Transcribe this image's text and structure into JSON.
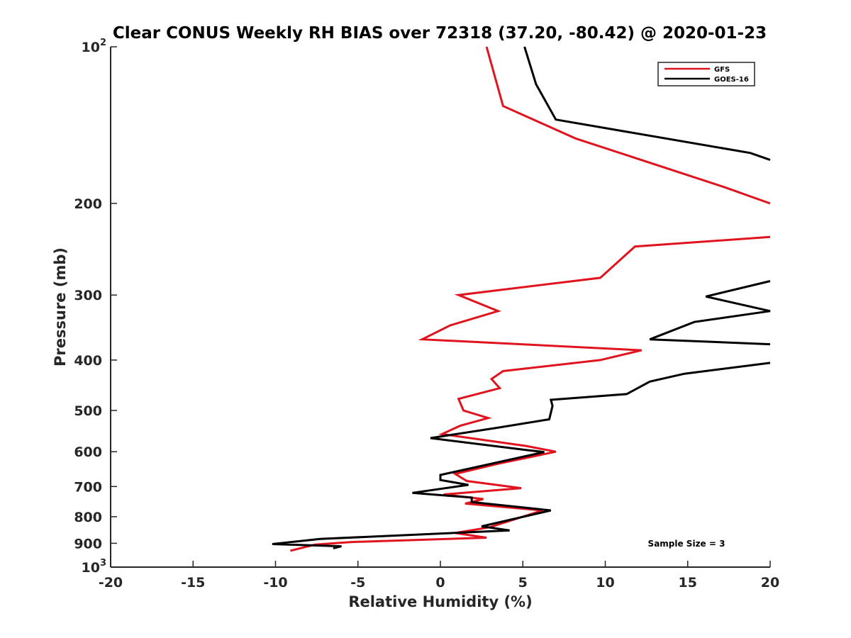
{
  "chart_data": {
    "type": "line",
    "title": "Clear CONUS Weekly RH BIAS over 72318 (37.20, -80.42) @ 2020-01-23",
    "xlabel": "Relative Humidity (%)",
    "ylabel": "Pressure (mb)",
    "xlim": [
      -20,
      20
    ],
    "ylim": [
      100,
      1000
    ],
    "y_scale": "log",
    "y_reversed": true,
    "grid": false,
    "legend_position": "top-right",
    "x_ticks": [
      "-20",
      "-15",
      "-10",
      "-5",
      "0",
      "5",
      "10",
      "15",
      "20"
    ],
    "y_ticks": [
      {
        "value": 100,
        "label": "10",
        "exp": "2"
      },
      {
        "value": 200,
        "label": "200",
        "exp": ""
      },
      {
        "value": 300,
        "label": "300",
        "exp": ""
      },
      {
        "value": 400,
        "label": "400",
        "exp": ""
      },
      {
        "value": 500,
        "label": "500",
        "exp": ""
      },
      {
        "value": 600,
        "label": "600",
        "exp": ""
      },
      {
        "value": 700,
        "label": "700",
        "exp": ""
      },
      {
        "value": 800,
        "label": "800",
        "exp": ""
      },
      {
        "value": 900,
        "label": "900",
        "exp": ""
      },
      {
        "value": 1000,
        "label": "10",
        "exp": "3"
      }
    ],
    "series": [
      {
        "name": "GFS",
        "color": "#e0141e",
        "segments": [
          [
            [
              2.8,
              100
            ],
            [
              3.8,
              130
            ],
            [
              8.2,
              150
            ],
            [
              17.2,
              186
            ],
            [
              20,
              200
            ]
          ],
          [
            [
              20,
              232
            ],
            [
              11.8,
              242
            ],
            [
              9.7,
              278
            ],
            [
              1.1,
              300
            ],
            [
              3.5,
              322
            ],
            [
              0.6,
              343
            ],
            [
              -1.1,
              365
            ],
            [
              12.2,
              383
            ],
            [
              9.7,
              400
            ],
            [
              3.8,
              420
            ],
            [
              3.1,
              435
            ],
            [
              3.6,
              453
            ],
            [
              1.1,
              475
            ],
            [
              1.4,
              500
            ],
            [
              2.9,
              517
            ],
            [
              1.2,
              535
            ],
            [
              0.1,
              555
            ],
            [
              5.2,
              585
            ],
            [
              7.0,
              600
            ],
            [
              3.5,
              633
            ],
            [
              0.9,
              662
            ],
            [
              1.6,
              683
            ],
            [
              4.9,
              705
            ],
            [
              0.2,
              725
            ],
            [
              2.6,
              740
            ],
            [
              1.5,
              755
            ],
            [
              6.2,
              778
            ],
            [
              3.0,
              838
            ],
            [
              0.9,
              860
            ],
            [
              2.8,
              878
            ],
            [
              -5.4,
              895
            ],
            [
              -7.6,
              905
            ],
            [
              -9.1,
              930
            ]
          ]
        ]
      },
      {
        "name": "GOES-16",
        "color": "#000000",
        "segments": [
          [
            [
              5.1,
              100
            ],
            [
              5.8,
              118
            ],
            [
              7.0,
              138
            ],
            [
              18.8,
              160
            ],
            [
              20,
              165
            ]
          ],
          [
            [
              20,
              282
            ],
            [
              16.1,
              302
            ],
            [
              20,
              322
            ],
            [
              15.4,
              338
            ],
            [
              12.7,
              365
            ],
            [
              20,
              373
            ]
          ],
          [
            [
              20,
              405
            ],
            [
              14.8,
              425
            ],
            [
              12.7,
              440
            ],
            [
              11.3,
              465
            ],
            [
              6.7,
              477
            ],
            [
              6.8,
              490
            ],
            [
              6.6,
              520
            ],
            [
              3.4,
              540
            ],
            [
              -0.6,
              565
            ],
            [
              5.1,
              595
            ],
            [
              6.3,
              601
            ],
            [
              0.0,
              665
            ],
            [
              0.0,
              680
            ],
            [
              1.7,
              695
            ],
            [
              -1.7,
              720
            ],
            [
              1.9,
              735
            ],
            [
              1.9,
              750
            ],
            [
              6.7,
              778
            ],
            [
              2.5,
              835
            ],
            [
              4.2,
              850
            ],
            [
              -7.3,
              883
            ],
            [
              -10.2,
              903
            ],
            [
              -6.0,
              912
            ],
            [
              -6.5,
              920
            ]
          ]
        ]
      }
    ],
    "annotations": [
      "Sample Size = 3"
    ]
  }
}
